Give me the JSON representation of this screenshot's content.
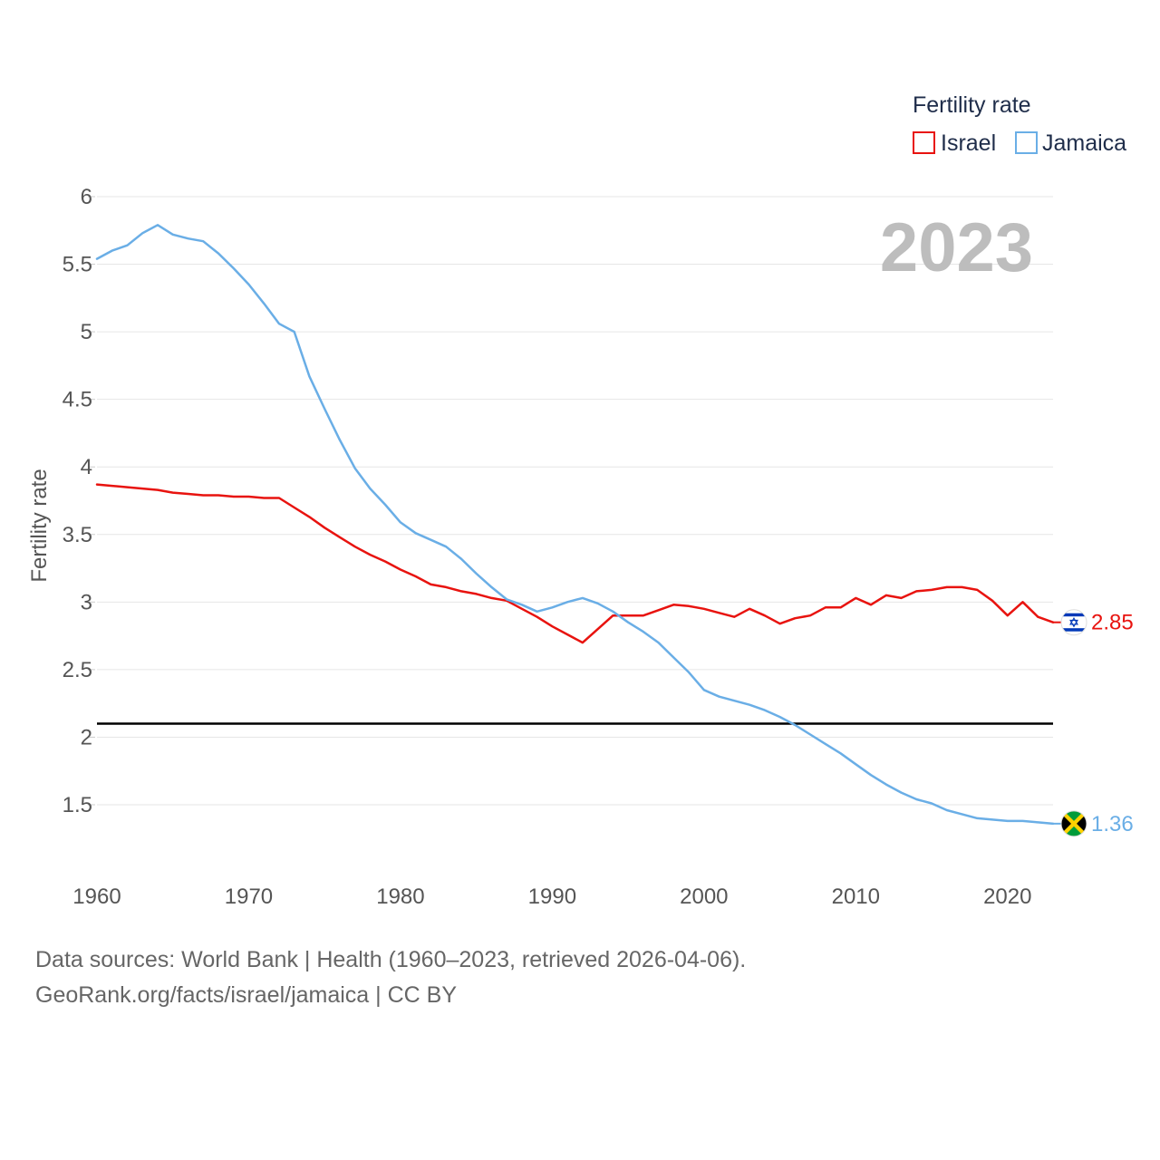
{
  "chart_data": {
    "type": "line",
    "title": "",
    "ylabel": "Fertility rate",
    "xlabel": "",
    "xlim": [
      1960,
      2023
    ],
    "ylim": [
      1,
      6
    ],
    "y_ticks": [
      {
        "value": 1.5,
        "label": "1.5"
      },
      {
        "value": 2,
        "label": "2"
      },
      {
        "value": 2.5,
        "label": "2.5"
      },
      {
        "value": 3,
        "label": "3"
      },
      {
        "value": 3.5,
        "label": "3.5"
      },
      {
        "value": 4,
        "label": "4"
      },
      {
        "value": 4.5,
        "label": "4.5"
      },
      {
        "value": 5,
        "label": "5"
      },
      {
        "value": 5.5,
        "label": "5.5"
      },
      {
        "value": 6,
        "label": "6"
      }
    ],
    "x_ticks": [
      {
        "value": 1960,
        "label": "1960"
      },
      {
        "value": 1970,
        "label": "1970"
      },
      {
        "value": 1980,
        "label": "1980"
      },
      {
        "value": 1990,
        "label": "1990"
      },
      {
        "value": 2000,
        "label": "2000"
      },
      {
        "value": 2010,
        "label": "2010"
      },
      {
        "value": 2020,
        "label": "2020"
      }
    ],
    "year_stamp": "2023",
    "legend": {
      "title": "Fertility rate",
      "placement": "top-right"
    },
    "reference_line": {
      "value": 2.1,
      "color": "#000000"
    },
    "series": [
      {
        "name": "Israel",
        "color": "#e8130f",
        "flag": "israel-flag",
        "end_label": "2.85",
        "x": [
          1960,
          1961,
          1962,
          1963,
          1964,
          1965,
          1966,
          1967,
          1968,
          1969,
          1970,
          1971,
          1972,
          1973,
          1974,
          1975,
          1976,
          1977,
          1978,
          1979,
          1980,
          1981,
          1982,
          1983,
          1984,
          1985,
          1986,
          1987,
          1988,
          1989,
          1990,
          1991,
          1992,
          1993,
          1994,
          1995,
          1996,
          1997,
          1998,
          1999,
          2000,
          2001,
          2002,
          2003,
          2004,
          2005,
          2006,
          2007,
          2008,
          2009,
          2010,
          2011,
          2012,
          2013,
          2014,
          2015,
          2016,
          2017,
          2018,
          2019,
          2020,
          2021,
          2022,
          2023
        ],
        "values": [
          3.87,
          3.86,
          3.85,
          3.84,
          3.83,
          3.81,
          3.8,
          3.79,
          3.79,
          3.78,
          3.78,
          3.77,
          3.77,
          3.7,
          3.63,
          3.55,
          3.48,
          3.41,
          3.35,
          3.3,
          3.24,
          3.19,
          3.13,
          3.11,
          3.08,
          3.06,
          3.03,
          3.01,
          2.95,
          2.89,
          2.82,
          2.76,
          2.7,
          2.8,
          2.9,
          2.9,
          2.9,
          2.94,
          2.98,
          2.97,
          2.95,
          2.92,
          2.89,
          2.95,
          2.9,
          2.84,
          2.88,
          2.9,
          2.96,
          2.96,
          3.03,
          2.98,
          3.05,
          3.03,
          3.08,
          3.09,
          3.11,
          3.11,
          3.09,
          3.01,
          2.9,
          3.0,
          2.89,
          2.85
        ]
      },
      {
        "name": "Jamaica",
        "color": "#6aaee6",
        "flag": "jamaica-flag",
        "end_label": "1.36",
        "x": [
          1960,
          1961,
          1962,
          1963,
          1964,
          1965,
          1966,
          1967,
          1968,
          1969,
          1970,
          1971,
          1972,
          1973,
          1974,
          1975,
          1976,
          1977,
          1978,
          1979,
          1980,
          1981,
          1982,
          1983,
          1984,
          1985,
          1986,
          1987,
          1988,
          1989,
          1990,
          1991,
          1992,
          1993,
          1994,
          1995,
          1996,
          1997,
          1998,
          1999,
          2000,
          2001,
          2002,
          2003,
          2004,
          2005,
          2006,
          2007,
          2008,
          2009,
          2010,
          2011,
          2012,
          2013,
          2014,
          2015,
          2016,
          2017,
          2018,
          2019,
          2020,
          2021,
          2022,
          2023
        ],
        "values": [
          5.54,
          5.6,
          5.64,
          5.73,
          5.79,
          5.72,
          5.69,
          5.67,
          5.58,
          5.47,
          5.35,
          5.21,
          5.06,
          5.0,
          4.67,
          4.43,
          4.2,
          3.99,
          3.84,
          3.72,
          3.59,
          3.51,
          3.46,
          3.41,
          3.32,
          3.21,
          3.11,
          3.02,
          2.98,
          2.93,
          2.96,
          3.0,
          3.03,
          2.99,
          2.93,
          2.85,
          2.78,
          2.7,
          2.59,
          2.48,
          2.35,
          2.3,
          2.27,
          2.24,
          2.2,
          2.15,
          2.09,
          2.02,
          1.95,
          1.88,
          1.8,
          1.72,
          1.65,
          1.59,
          1.54,
          1.51,
          1.46,
          1.43,
          1.4,
          1.39,
          1.38,
          1.38,
          1.37,
          1.36
        ]
      }
    ]
  },
  "footer": {
    "sources": "Data sources: World Bank | Health (1960–2023, retrieved 2026-04-06).",
    "credit": "GeoRank.org/facts/israel/jamaica | CC BY"
  }
}
